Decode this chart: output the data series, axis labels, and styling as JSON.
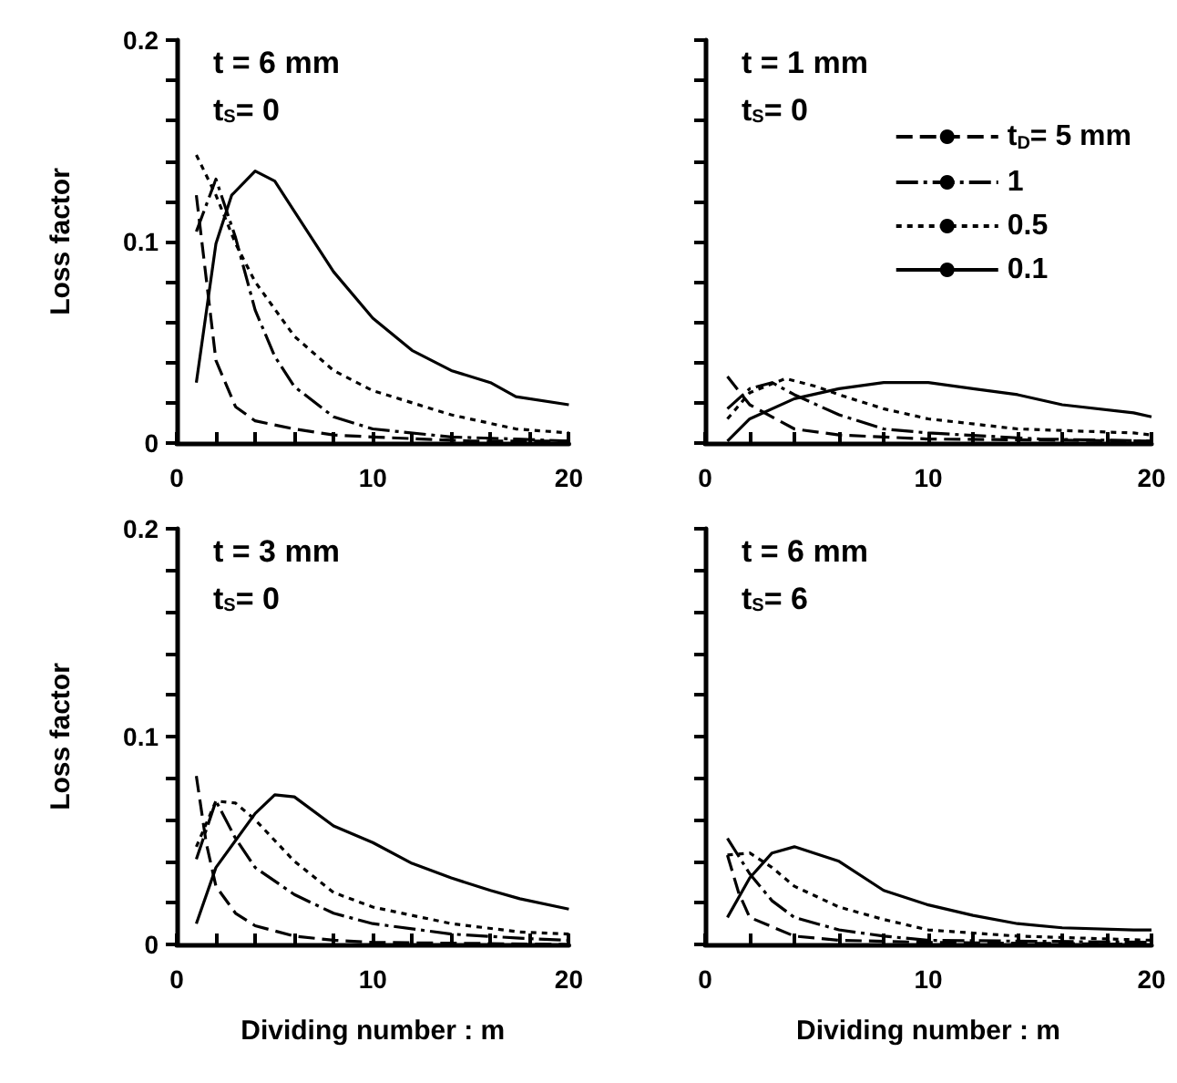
{
  "chart_data": [
    {
      "type": "line",
      "ylabel": "Loss factor",
      "annotations": [
        "t = 6 mm",
        "t$_{S}$= 0"
      ],
      "xlim": [
        0,
        20
      ],
      "ylim": [
        0,
        0.2
      ],
      "xticks": [
        0,
        {
          "value": 2,
          "label": null
        },
        {
          "value": 4,
          "label": null
        },
        {
          "value": 6,
          "label": null
        },
        {
          "value": 8,
          "label": null
        },
        10,
        {
          "value": 12,
          "label": null
        },
        {
          "value": 14,
          "label": null
        },
        {
          "value": 16,
          "label": null
        },
        {
          "value": 18,
          "label": null
        },
        20
      ],
      "yticks": [
        0,
        {
          "value": 0.02,
          "label": null
        },
        {
          "value": 0.04,
          "label": null
        },
        {
          "value": 0.06,
          "label": null
        },
        {
          "value": 0.08,
          "label": null
        },
        0.1,
        {
          "value": 0.12,
          "label": null
        },
        {
          "value": 0.14,
          "label": null
        },
        {
          "value": 0.16,
          "label": null
        },
        {
          "value": 0.18,
          "label": null
        },
        0.2
      ],
      "grid": false,
      "legend": false,
      "marker": "none",
      "series": [
        {
          "color": "#000000",
          "line_style": "dashed",
          "x": [
            1,
            1.5,
            2,
            3,
            4,
            6,
            8,
            10,
            15,
            20
          ],
          "values": [
            0.123,
            0.082,
            0.041,
            0.018,
            0.011,
            0.007,
            0.004,
            0.003,
            0.001,
            0.001
          ]
        },
        {
          "color": "#000000",
          "line_style": "dashdot",
          "x": [
            1,
            2,
            3,
            4,
            5,
            6,
            8,
            10,
            14,
            17.3,
            20
          ],
          "values": [
            0.105,
            0.131,
            0.102,
            0.066,
            0.043,
            0.028,
            0.013,
            0.007,
            0.003,
            0.002,
            0.001
          ]
        },
        {
          "color": "#000000",
          "line_style": "dotted",
          "x": [
            1,
            2,
            3,
            4,
            6,
            8,
            10,
            14,
            17.3,
            20
          ],
          "values": [
            0.143,
            0.123,
            0.099,
            0.08,
            0.053,
            0.036,
            0.026,
            0.014,
            0.007,
            0.005
          ]
        },
        {
          "color": "#000000",
          "line_style": "solid",
          "x": [
            1,
            2,
            2.8,
            4,
            5,
            6,
            8,
            10,
            12,
            14,
            16,
            17.3,
            20
          ],
          "values": [
            0.03,
            0.099,
            0.123,
            0.135,
            0.13,
            0.115,
            0.085,
            0.062,
            0.046,
            0.036,
            0.03,
            0.023,
            0.019
          ]
        }
      ]
    },
    {
      "type": "line",
      "annotations": [
        "t = 1 mm",
        "t$_{S}$= 0"
      ],
      "xlim": [
        0,
        20
      ],
      "ylim": [
        0,
        0.2
      ],
      "tick_labels": "x",
      "xticks": [
        0,
        {
          "value": 2,
          "label": null
        },
        {
          "value": 4,
          "label": null
        },
        {
          "value": 6,
          "label": null
        },
        {
          "value": 8,
          "label": null
        },
        10,
        {
          "value": 12,
          "label": null
        },
        {
          "value": 14,
          "label": null
        },
        {
          "value": 16,
          "label": null
        },
        {
          "value": 18,
          "label": null
        },
        20
      ],
      "yticks": [
        {
          "value": 0,
          "label": null
        },
        {
          "value": 0.02,
          "label": null
        },
        {
          "value": 0.04,
          "label": null
        },
        {
          "value": 0.06,
          "label": null
        },
        {
          "value": 0.08,
          "label": null
        },
        {
          "value": 0.1,
          "label": null
        },
        {
          "value": 0.12,
          "label": null
        },
        {
          "value": 0.14,
          "label": null
        },
        {
          "value": 0.16,
          "label": null
        },
        {
          "value": 0.18,
          "label": null
        },
        {
          "value": 0.2,
          "label": null
        }
      ],
      "grid": false,
      "legend": "top right",
      "marker": "none",
      "series": [
        {
          "name": "t$_{D}$= 5 mm",
          "color": "#000000",
          "line_style": "dashed",
          "x": [
            1,
            2,
            4,
            6,
            10,
            20
          ],
          "values": [
            0.033,
            0.019,
            0.007,
            0.004,
            0.002,
            0.001
          ]
        },
        {
          "name": "1",
          "color": "#000000",
          "line_style": "dashdot",
          "x": [
            1,
            2,
            3,
            4,
            6,
            8,
            10,
            15,
            20
          ],
          "values": [
            0.017,
            0.027,
            0.03,
            0.024,
            0.014,
            0.007,
            0.005,
            0.002,
            0.001
          ]
        },
        {
          "name": "0.5",
          "color": "#000000",
          "line_style": "dotted",
          "x": [
            1,
            2,
            3.6,
            5,
            6,
            8,
            10,
            14,
            19.2,
            20
          ],
          "values": [
            0.012,
            0.025,
            0.032,
            0.028,
            0.024,
            0.017,
            0.012,
            0.007,
            0.005,
            0.004
          ]
        },
        {
          "name": "0.1",
          "color": "#000000",
          "line_style": "solid",
          "x": [
            1,
            2,
            4,
            6,
            8,
            10,
            12,
            14,
            16,
            19.2,
            20
          ],
          "values": [
            0.001,
            0.012,
            0.022,
            0.027,
            0.03,
            0.03,
            0.027,
            0.024,
            0.019,
            0.015,
            0.013
          ]
        }
      ]
    },
    {
      "type": "line",
      "xlabel": "Dividing number : m",
      "ylabel": "Loss factor",
      "annotations": [
        "t = 3 mm",
        "t$_{S}$= 0"
      ],
      "xlim": [
        0,
        20
      ],
      "ylim": [
        0,
        0.2
      ],
      "xticks": [
        0,
        {
          "value": 2,
          "label": null
        },
        {
          "value": 4,
          "label": null
        },
        {
          "value": 6,
          "label": null
        },
        {
          "value": 8,
          "label": null
        },
        10,
        {
          "value": 12,
          "label": null
        },
        {
          "value": 14,
          "label": null
        },
        {
          "value": 16,
          "label": null
        },
        {
          "value": 18,
          "label": null
        },
        20
      ],
      "yticks": [
        0,
        {
          "value": 0.02,
          "label": null
        },
        {
          "value": 0.04,
          "label": null
        },
        {
          "value": 0.06,
          "label": null
        },
        {
          "value": 0.08,
          "label": null
        },
        0.1,
        {
          "value": 0.12,
          "label": null
        },
        {
          "value": 0.14,
          "label": null
        },
        {
          "value": 0.16,
          "label": null
        },
        {
          "value": 0.18,
          "label": null
        },
        0.2
      ],
      "grid": false,
      "legend": false,
      "marker": "none",
      "series": [
        {
          "color": "#000000",
          "line_style": "dashed",
          "x": [
            1,
            1.5,
            2,
            3,
            4,
            6,
            8,
            10,
            20
          ],
          "values": [
            0.081,
            0.049,
            0.028,
            0.015,
            0.009,
            0.004,
            0.002,
            0.001,
            0
          ]
        },
        {
          "color": "#000000",
          "line_style": "dashdot",
          "x": [
            1,
            2,
            3,
            4,
            6,
            8,
            10,
            14,
            17.5,
            20
          ],
          "values": [
            0.041,
            0.069,
            0.051,
            0.037,
            0.024,
            0.015,
            0.01,
            0.005,
            0.003,
            0.002
          ]
        },
        {
          "color": "#000000",
          "line_style": "dotted",
          "x": [
            1,
            2,
            3,
            4,
            6,
            8,
            10,
            14,
            17.5,
            20
          ],
          "values": [
            0.047,
            0.069,
            0.068,
            0.06,
            0.04,
            0.025,
            0.018,
            0.01,
            0.006,
            0.005
          ]
        },
        {
          "color": "#000000",
          "line_style": "solid",
          "x": [
            1,
            2,
            4,
            5,
            6,
            8,
            10,
            12,
            14,
            16,
            17.5,
            20
          ],
          "values": [
            0.01,
            0.037,
            0.063,
            0.072,
            0.071,
            0.057,
            0.049,
            0.039,
            0.032,
            0.026,
            0.022,
            0.017
          ]
        }
      ]
    },
    {
      "type": "line",
      "xlabel": "Dividing number : m",
      "annotations": [
        "t = 6 mm",
        "t$_{S}$= 6"
      ],
      "xlim": [
        0,
        20
      ],
      "ylim": [
        0,
        0.2
      ],
      "tick_labels": "x",
      "xticks": [
        0,
        {
          "value": 2,
          "label": null
        },
        {
          "value": 4,
          "label": null
        },
        {
          "value": 6,
          "label": null
        },
        {
          "value": 8,
          "label": null
        },
        10,
        {
          "value": 12,
          "label": null
        },
        {
          "value": 14,
          "label": null
        },
        {
          "value": 16,
          "label": null
        },
        {
          "value": 18,
          "label": null
        },
        20
      ],
      "yticks": [
        {
          "value": 0,
          "label": null
        },
        {
          "value": 0.02,
          "label": null
        },
        {
          "value": 0.04,
          "label": null
        },
        {
          "value": 0.06,
          "label": null
        },
        {
          "value": 0.08,
          "label": null
        },
        {
          "value": 0.1,
          "label": null
        },
        {
          "value": 0.12,
          "label": null
        },
        {
          "value": 0.14,
          "label": null
        },
        {
          "value": 0.16,
          "label": null
        },
        {
          "value": 0.18,
          "label": null
        },
        {
          "value": 0.2,
          "label": null
        }
      ],
      "grid": false,
      "legend": false,
      "marker": "none",
      "series": [
        {
          "color": "#000000",
          "line_style": "dashed",
          "x": [
            1,
            1.5,
            2,
            4,
            6,
            10,
            20
          ],
          "values": [
            0.043,
            0.025,
            0.013,
            0.004,
            0.002,
            0.001,
            0
          ]
        },
        {
          "color": "#000000",
          "line_style": "dashdot",
          "x": [
            1,
            2,
            3,
            4,
            6,
            8,
            10,
            20
          ],
          "values": [
            0.051,
            0.034,
            0.021,
            0.013,
            0.007,
            0.004,
            0.002,
            0.001
          ]
        },
        {
          "color": "#000000",
          "line_style": "dotted",
          "x": [
            1,
            2,
            3,
            4,
            6,
            8,
            10,
            14,
            20
          ],
          "values": [
            0.043,
            0.044,
            0.037,
            0.028,
            0.018,
            0.012,
            0.007,
            0.004,
            0.002
          ]
        },
        {
          "color": "#000000",
          "line_style": "solid",
          "x": [
            1,
            2,
            3,
            4,
            6,
            8,
            10,
            12,
            14,
            16,
            19.2,
            20
          ],
          "values": [
            0.013,
            0.032,
            0.044,
            0.047,
            0.04,
            0.026,
            0.019,
            0.014,
            0.01,
            0.008,
            0.007,
            0.007
          ]
        }
      ]
    }
  ]
}
